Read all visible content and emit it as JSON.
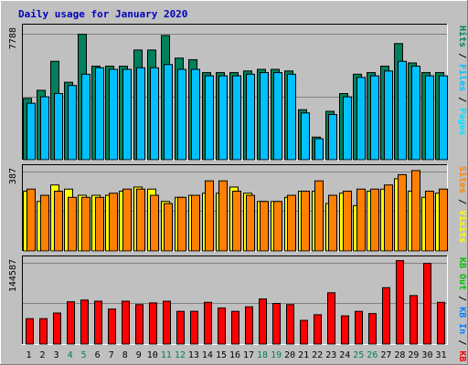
{
  "title": "Daily usage for January 2020",
  "colors": {
    "background": "#c0c0c0",
    "grid": "#808080",
    "title": "#0000c0",
    "hits": "#00805c",
    "files": "#00c0ff",
    "pages": "#00e0ff",
    "visits": "#ffff00",
    "sites": "#ff8000",
    "kbin": "#0080ff",
    "kbout": "#00c000",
    "kbf": "#ff0000",
    "weekend": "#00805c",
    "weekday": "#000000"
  },
  "chart_data": [
    {
      "type": "bar",
      "panel": "top",
      "ymax_label": "7788",
      "ylim": [
        0,
        7788
      ],
      "legend": [
        {
          "name": "Pages",
          "color": "#00e0ff"
        },
        {
          "name": "Files",
          "color": "#00c0ff"
        },
        {
          "name": "Hits",
          "color": "#00805c"
        }
      ],
      "categories": [
        "1",
        "2",
        "3",
        "4",
        "5",
        "6",
        "7",
        "8",
        "9",
        "10",
        "11",
        "12",
        "13",
        "14",
        "15",
        "16",
        "17",
        "18",
        "19",
        "20",
        "21",
        "22",
        "23",
        "24",
        "25",
        "26",
        "27",
        "28",
        "29",
        "30",
        "31"
      ],
      "series": [
        {
          "name": "Hits",
          "color": "#00805c",
          "values": [
            3800,
            4300,
            6100,
            4800,
            7780,
            5800,
            5800,
            5800,
            6800,
            6800,
            7700,
            6300,
            6200,
            5400,
            5400,
            5400,
            5500,
            5600,
            5600,
            5500,
            3100,
            1400,
            3000,
            4100,
            5300,
            5400,
            5800,
            7200,
            6000,
            5400,
            5400
          ]
        },
        {
          "name": "Files",
          "color": "#00c0ff",
          "values": [
            3500,
            3900,
            4100,
            4600,
            5300,
            5700,
            5600,
            5600,
            5700,
            5700,
            5900,
            5600,
            5600,
            5200,
            5200,
            5200,
            5300,
            5400,
            5400,
            5300,
            2900,
            1300,
            2800,
            3900,
            5100,
            5200,
            5500,
            6100,
            5800,
            5200,
            5200
          ]
        }
      ]
    },
    {
      "type": "bar",
      "panel": "middle",
      "ymax_label": "387",
      "ylim": [
        0,
        387
      ],
      "legend": [
        {
          "name": "Visits",
          "color": "#ffff00"
        },
        {
          "name": "Sites",
          "color": "#ff8000"
        }
      ],
      "categories": [
        "1",
        "2",
        "3",
        "4",
        "5",
        "6",
        "7",
        "8",
        "9",
        "10",
        "11",
        "12",
        "13",
        "14",
        "15",
        "16",
        "17",
        "18",
        "19",
        "20",
        "21",
        "22",
        "23",
        "24",
        "25",
        "26",
        "27",
        "28",
        "29",
        "30",
        "31"
      ],
      "series": [
        {
          "name": "Visits",
          "color": "#ffff00",
          "values": [
            290,
            240,
            320,
            300,
            270,
            270,
            270,
            290,
            310,
            300,
            240,
            260,
            270,
            280,
            280,
            310,
            280,
            240,
            240,
            260,
            290,
            290,
            230,
            280,
            220,
            290,
            300,
            350,
            290,
            260,
            280
          ]
        },
        {
          "name": "Sites",
          "color": "#ff8000",
          "values": [
            300,
            270,
            290,
            260,
            260,
            260,
            280,
            300,
            300,
            270,
            230,
            260,
            270,
            340,
            340,
            290,
            270,
            240,
            240,
            270,
            290,
            340,
            270,
            290,
            300,
            300,
            320,
            370,
            390,
            290,
            300
          ]
        }
      ]
    },
    {
      "type": "bar",
      "panel": "bottom",
      "ymax_label": "144587",
      "ylim": [
        0,
        144587
      ],
      "legend": [
        {
          "name": "KB F",
          "color": "#ff0000"
        },
        {
          "name": "KB In",
          "color": "#0080ff"
        },
        {
          "name": "KB Out",
          "color": "#00c000"
        }
      ],
      "categories": [
        "1",
        "2",
        "3",
        "4",
        "5",
        "6",
        "7",
        "8",
        "9",
        "10",
        "11",
        "12",
        "13",
        "14",
        "15",
        "16",
        "17",
        "18",
        "19",
        "20",
        "21",
        "22",
        "23",
        "24",
        "25",
        "26",
        "27",
        "28",
        "29",
        "30",
        "31"
      ],
      "series": [
        {
          "name": "KB F",
          "color": "#ff0000",
          "values": [
            45000,
            45000,
            55000,
            75000,
            78000,
            76000,
            62000,
            76000,
            70000,
            73000,
            76000,
            58000,
            58000,
            74000,
            64000,
            58000,
            66000,
            80000,
            72000,
            70000,
            42000,
            52000,
            91000,
            50000,
            58000,
            54000,
            100000,
            148000,
            86000,
            143000,
            74000
          ]
        }
      ]
    }
  ]
}
